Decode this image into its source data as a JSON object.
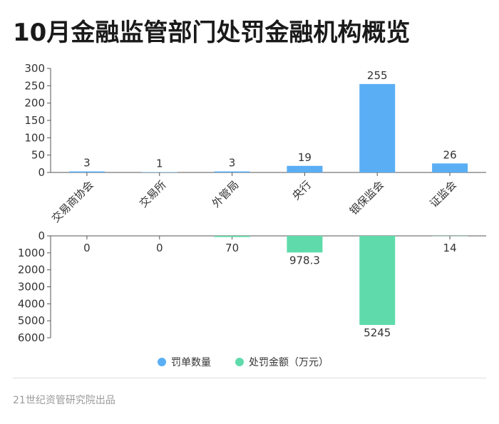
{
  "title": "10月金融监管部门处罚金融机构概览",
  "source": "21世纪资管研究院出品",
  "chart_data": {
    "type": "bar",
    "categories": [
      "交易商协会",
      "交易所",
      "外管局",
      "央行",
      "银保监会",
      "证监会"
    ],
    "series": [
      {
        "name": "罚单数量",
        "values": [
          3,
          1,
          3,
          19,
          255,
          26
        ],
        "labels": [
          "3",
          "1",
          "3",
          "19",
          "255",
          "26"
        ],
        "color": "#5aaef4",
        "ylim": [
          0,
          300
        ],
        "ticks": [
          0,
          50,
          100,
          150,
          200,
          250,
          300
        ]
      },
      {
        "name": "处罚金额（万元）",
        "values": [
          0,
          0,
          70,
          978.3,
          5245,
          14
        ],
        "labels": [
          "0",
          "0",
          "70",
          "978.3",
          "5245",
          "14"
        ],
        "color": "#5fdbab",
        "ylim": [
          0,
          6000
        ],
        "ticks": [
          0,
          1000,
          2000,
          3000,
          4000,
          5000,
          6000
        ],
        "inverted": true
      }
    ],
    "legend_position": "bottom",
    "grid": false
  }
}
